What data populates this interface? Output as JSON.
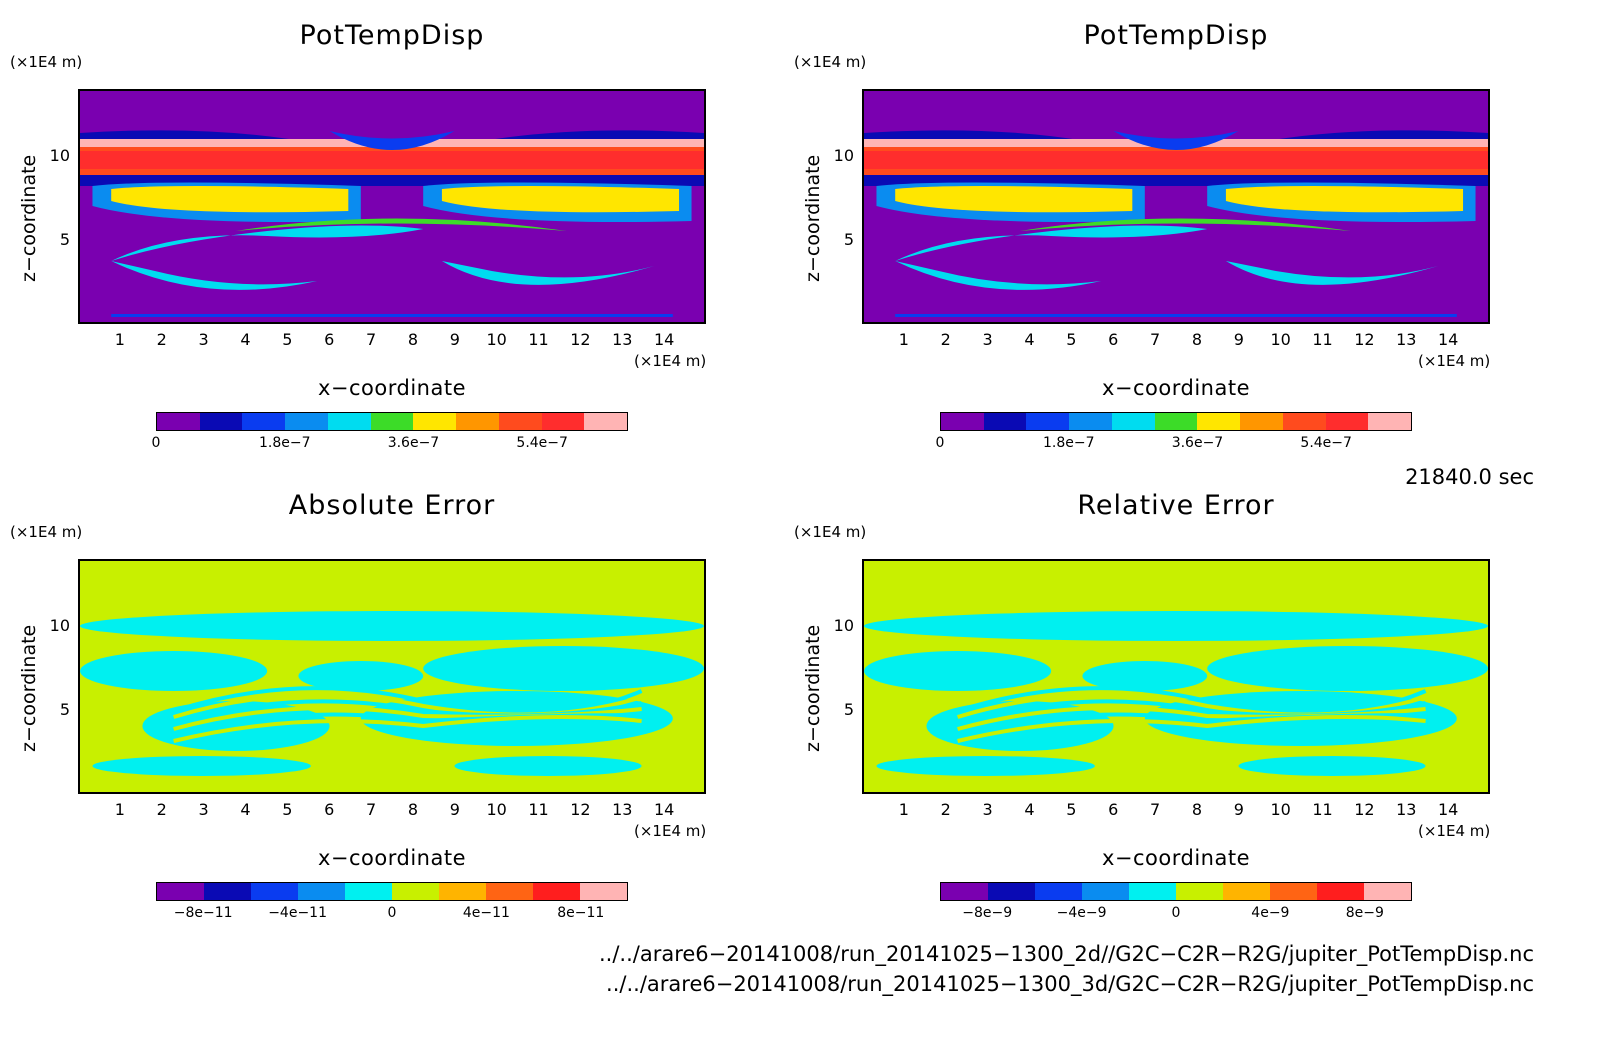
{
  "panels": [
    {
      "title": "PotTempDisp",
      "kind": "pot",
      "xunit": "(×1E4 m)",
      "yunit": "(×1E4 m)",
      "xlabel": "x−coordinate",
      "ylabel": "z−coordinate",
      "xticks": [
        "1",
        "2",
        "3",
        "4",
        "5",
        "6",
        "7",
        "8",
        "9",
        "10",
        "11",
        "12",
        "13",
        "14"
      ],
      "yticks": [
        "5",
        "10"
      ],
      "colorbar": {
        "labels": [
          "0",
          "1.8e−7",
          "3.6e−7",
          "5.4e−7"
        ],
        "label_positions": [
          0,
          3,
          6,
          9
        ]
      }
    },
    {
      "title": "PotTempDisp",
      "kind": "pot",
      "xunit": "(×1E4 m)",
      "yunit": "(×1E4 m)",
      "xlabel": "x−coordinate",
      "ylabel": "z−coordinate",
      "xticks": [
        "1",
        "2",
        "3",
        "4",
        "5",
        "6",
        "7",
        "8",
        "9",
        "10",
        "11",
        "12",
        "13",
        "14"
      ],
      "yticks": [
        "5",
        "10"
      ],
      "colorbar": {
        "labels": [
          "0",
          "1.8e−7",
          "3.6e−7",
          "5.4e−7"
        ],
        "label_positions": [
          0,
          3,
          6,
          9
        ]
      }
    },
    {
      "title": "Absolute Error",
      "kind": "err",
      "xunit": "(×1E4 m)",
      "yunit": "(×1E4 m)",
      "xlabel": "x−coordinate",
      "ylabel": "z−coordinate",
      "xticks": [
        "1",
        "2",
        "3",
        "4",
        "5",
        "6",
        "7",
        "8",
        "9",
        "10",
        "11",
        "12",
        "13",
        "14"
      ],
      "yticks": [
        "5",
        "10"
      ],
      "colorbar": {
        "labels": [
          "−8e−11",
          "−4e−11",
          "0",
          "4e−11",
          "8e−11"
        ],
        "label_positions": [
          1,
          3,
          5,
          7,
          9
        ]
      }
    },
    {
      "title": "Relative Error",
      "kind": "err",
      "xunit": "(×1E4 m)",
      "yunit": "(×1E4 m)",
      "xlabel": "x−coordinate",
      "ylabel": "z−coordinate",
      "xticks": [
        "1",
        "2",
        "3",
        "4",
        "5",
        "6",
        "7",
        "8",
        "9",
        "10",
        "11",
        "12",
        "13",
        "14"
      ],
      "yticks": [
        "5",
        "10"
      ],
      "colorbar": {
        "labels": [
          "−8e−9",
          "−4e−9",
          "0",
          "4e−9",
          "8e−9"
        ],
        "label_positions": [
          1,
          3,
          5,
          7,
          9
        ]
      }
    }
  ],
  "colors": {
    "pot_levels": [
      "#7a00b0",
      "#0a0ab4",
      "#0a3cf0",
      "#0a8cf0",
      "#00dcf0",
      "#3cdc28",
      "#ffe600",
      "#ff9600",
      "#ff4b1e",
      "#ff2d2d",
      "#ffb4b4"
    ],
    "err_levels": [
      "#7a00b0",
      "#0a0ab4",
      "#0a3cf0",
      "#0a8cf0",
      "#00f0f0",
      "#c8f000",
      "#ffb400",
      "#ff6414",
      "#ff1e1e",
      "#ffb4b4"
    ]
  },
  "time_label": "21840.0 sec",
  "footer": [
    "../../arare6−20141008/run_20141025−1300_2d//G2C−C2R−R2G/jupiter_PotTempDisp.nc",
    "../../arare6−20141008/run_20141025−1300_3d/G2C−C2R−R2G/jupiter_PotTempDisp.nc"
  ],
  "chart_data": [
    {
      "type": "heatmap",
      "title": "PotTempDisp",
      "xlabel": "x−coordinate",
      "ylabel": "z−coordinate",
      "x_unit": "(×1E4 m)",
      "y_unit": "(×1E4 m)",
      "xlim": [
        0,
        15
      ],
      "ylim": [
        0,
        14
      ],
      "colorbar_ticks": [
        "0",
        "1.8e−7",
        "3.6e−7",
        "5.4e−7"
      ],
      "colorbar_range": [
        0,
        6.6e-07
      ]
    },
    {
      "type": "heatmap",
      "title": "PotTempDisp",
      "xlabel": "x−coordinate",
      "ylabel": "z−coordinate",
      "x_unit": "(×1E4 m)",
      "y_unit": "(×1E4 m)",
      "xlim": [
        0,
        15
      ],
      "ylim": [
        0,
        14
      ],
      "colorbar_ticks": [
        "0",
        "1.8e−7",
        "3.6e−7",
        "5.4e−7"
      ],
      "colorbar_range": [
        0,
        6.6e-07
      ]
    },
    {
      "type": "heatmap",
      "title": "Absolute Error",
      "xlabel": "x−coordinate",
      "ylabel": "z−coordinate",
      "x_unit": "(×1E4 m)",
      "y_unit": "(×1E4 m)",
      "xlim": [
        0,
        15
      ],
      "ylim": [
        0,
        14
      ],
      "colorbar_ticks": [
        "−8e−11",
        "−4e−11",
        "0",
        "4e−11",
        "8e−11"
      ],
      "colorbar_range": [
        -1e-10,
        1e-10
      ]
    },
    {
      "type": "heatmap",
      "title": "Relative Error",
      "xlabel": "x−coordinate",
      "ylabel": "z−coordinate",
      "x_unit": "(×1E4 m)",
      "y_unit": "(×1E4 m)",
      "xlim": [
        0,
        15
      ],
      "ylim": [
        0,
        14
      ],
      "colorbar_ticks": [
        "−8e−9",
        "−4e−9",
        "0",
        "4e−9",
        "8e−9"
      ],
      "colorbar_range": [
        -1e-08,
        1e-08
      ]
    }
  ]
}
